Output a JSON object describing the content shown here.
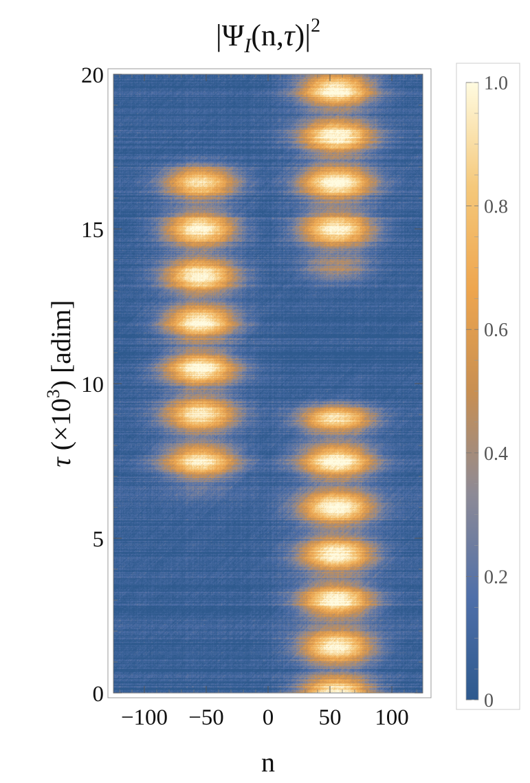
{
  "chart_data": {
    "type": "heatmap",
    "title": "|Ψ_I(n,τ)|²",
    "title_parts": {
      "open": "|Ψ",
      "sub": "I",
      "mid": "(n,",
      "tau": "τ",
      "close": ")|",
      "sup": "2"
    },
    "xlabel": "n",
    "ylabel": "τ (×10³) [adim]",
    "ylabel_parts": {
      "tau": "τ",
      "pre": " (×10",
      "sup": "3",
      "post": ") [adim]"
    },
    "xlim": [
      -125,
      125
    ],
    "ylim": [
      0,
      20
    ],
    "x_ticks": [
      -100,
      -50,
      0,
      50,
      100
    ],
    "x_tick_labels": [
      "−100",
      "−50",
      "0",
      "50",
      "100"
    ],
    "y_ticks": [
      0,
      5,
      10,
      15,
      20
    ],
    "y_tick_labels": [
      "0",
      "5",
      "10",
      "15",
      "20"
    ],
    "colorbar": {
      "range": [
        0,
        1.0
      ],
      "ticks": [
        0,
        0.2,
        0.4,
        0.6,
        0.8,
        1.0
      ],
      "tick_labels": [
        "0",
        "0.2",
        "0.4",
        "0.6",
        "0.8",
        "1.0"
      ],
      "colors": [
        "#2e5a8e",
        "#4f6fa9",
        "#8d8a96",
        "#c88f52",
        "#eea64f",
        "#f5c97c",
        "#fffbe0"
      ]
    },
    "features": [
      {
        "tau_range": [
          0,
          5
        ],
        "n_center": 55,
        "intensity_max": 1.0
      },
      {
        "tau_range": [
          5,
          8.3
        ],
        "n_center": 55,
        "intensity_max": 1.0
      },
      {
        "tau_range": [
          7.5,
          10
        ],
        "n_center": -55,
        "intensity_max": 0.9
      },
      {
        "tau_range": [
          10,
          15
        ],
        "n_center": -55,
        "intensity_max": 1.0
      },
      {
        "tau_range": [
          15,
          16.5
        ],
        "n_center": -55,
        "intensity_max": 0.85
      },
      {
        "tau_range": [
          15,
          20
        ],
        "n_center": 55,
        "intensity_max": 1.0
      }
    ]
  }
}
